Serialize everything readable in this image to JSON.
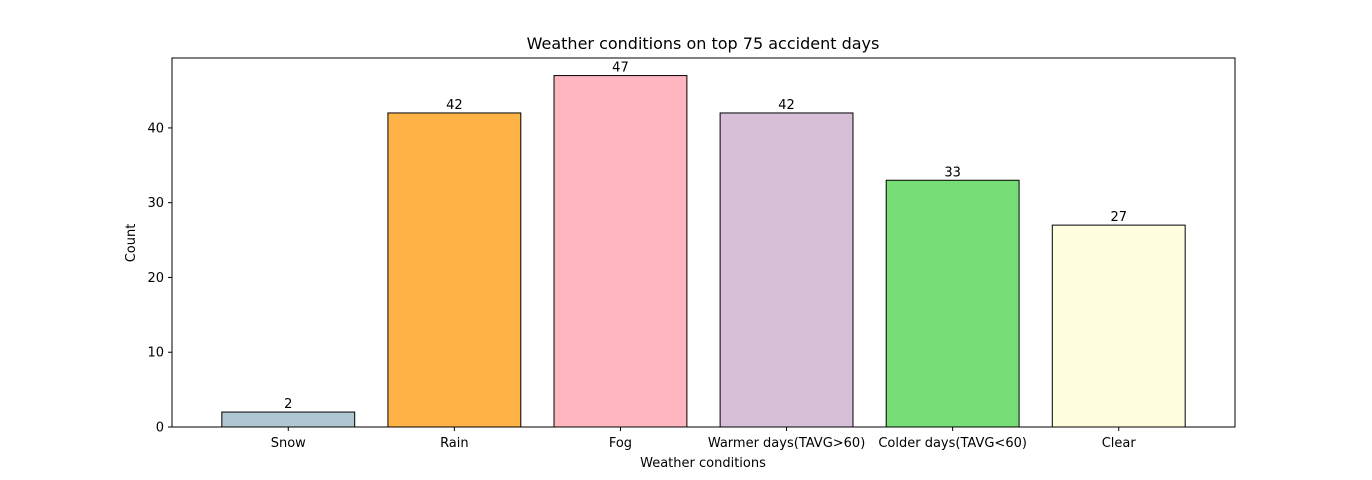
{
  "chart_data": {
    "type": "bar",
    "title": "Weather conditions on top 75 accident days",
    "xlabel": "Weather conditions",
    "ylabel": "Count",
    "categories": [
      "Snow",
      "Rain",
      "Fog",
      "Warmer days(TAVG>60)",
      "Colder days(TAVG<60)",
      "Clear"
    ],
    "values": [
      2,
      42,
      47,
      42,
      33,
      27
    ],
    "colors": [
      "#aec7d0",
      "#ffb347",
      "#ffb6c1",
      "#d8bfd8",
      "#77dd77",
      "#ffffe0"
    ],
    "edge_color": "#000000",
    "ylim": [
      0,
      49.35
    ],
    "yticks": [
      0,
      10,
      20,
      30,
      40
    ],
    "grid": false,
    "show_data_labels": true
  }
}
